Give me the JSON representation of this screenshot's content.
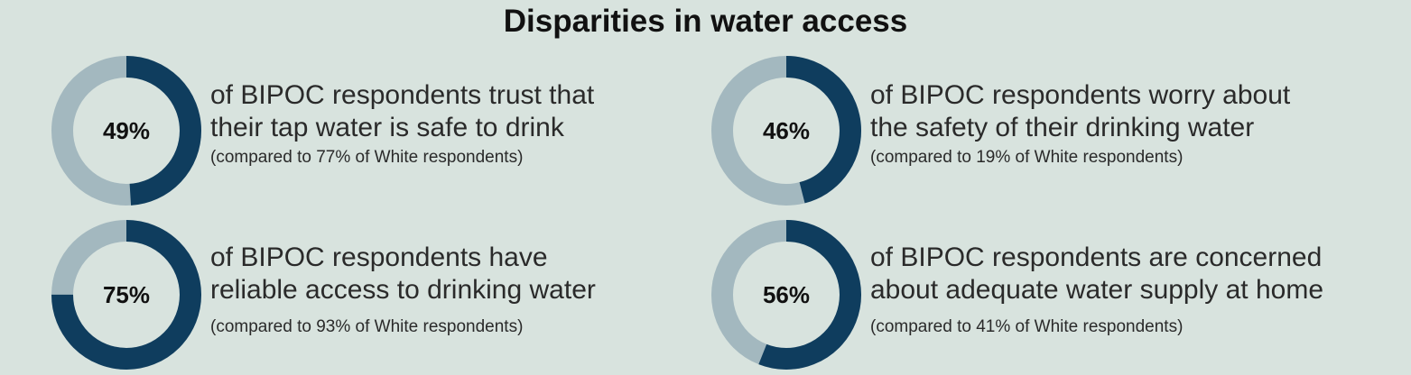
{
  "title": "Disparities in water access",
  "chart_data": {
    "type": "pie",
    "title": "Disparities in water access",
    "colors": {
      "value_arc": "#0f3d5e",
      "remainder_arc": "#a3b8bf",
      "background": "#d8e3de"
    },
    "items": [
      {
        "value": 49,
        "label": "49%",
        "statement_line1": "of BIPOC respondents trust that",
        "statement_line2": "their tap water is safe to drink",
        "comparison": "(compared to 77% of White respondents)",
        "white_value": 77
      },
      {
        "value": 46,
        "label": "46%",
        "statement_line1": "of BIPOC respondents worry about",
        "statement_line2": "the safety of their drinking water",
        "comparison": "(compared to 19% of White respondents)",
        "white_value": 19
      },
      {
        "value": 75,
        "label": "75%",
        "statement_line1": "of BIPOC respondents have",
        "statement_line2": "reliable access to drinking water",
        "comparison": "(compared to 93% of White respondents)",
        "white_value": 93
      },
      {
        "value": 56,
        "label": "56%",
        "statement_line1": "of BIPOC respondents are concerned",
        "statement_line2": "about adequate water supply at home",
        "comparison": "(compared to 41% of White respondents)",
        "white_value": 41
      }
    ]
  }
}
